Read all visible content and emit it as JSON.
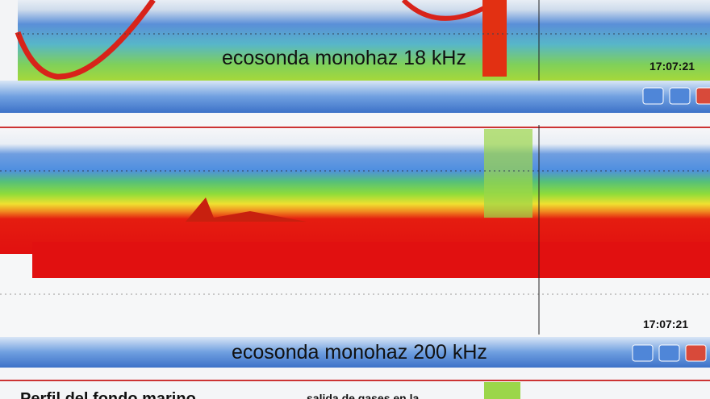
{
  "panels": [
    {
      "label": "ecosonda monohaz 18 kHz",
      "time": "17:07:21"
    },
    {
      "label": "ecosonda monohaz 200 kHz",
      "time": "17:07:21"
    }
  ],
  "captions": [
    "Perfil del fondo marino",
    "salida de gases en la"
  ]
}
